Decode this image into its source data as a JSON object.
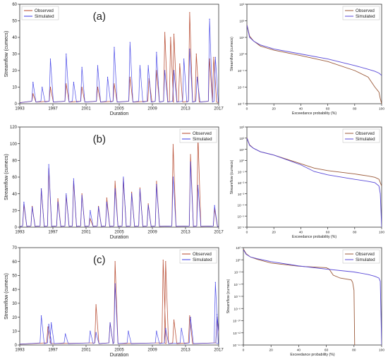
{
  "colors": {
    "observed": "#b5452a",
    "simulated": "#3a3ae6",
    "observed_fdc": "#9b5a3a",
    "simulated_fdc": "#5a4ad8"
  },
  "chart_data": [
    {
      "id": "a-hydro",
      "type": "line",
      "panel_label": "(a)",
      "xlabel": "Duration",
      "ylabel": "Streamflow (cumecs)",
      "xlim": [
        1993,
        2017
      ],
      "ylim": [
        0,
        60
      ],
      "x_ticks": [
        "1993",
        "1997",
        "2001",
        "2005",
        "2009",
        "2013",
        "2017"
      ],
      "y_ticks": [
        "0",
        "10",
        "20",
        "30",
        "40",
        "50",
        "60"
      ],
      "legend": [
        "Observed",
        "Simulated"
      ],
      "legend_position": "top-left",
      "series": [
        {
          "name": "Observed",
          "x": [
            1994.6,
            1996.7,
            1998.6,
            2000.5,
            2002.4,
            2004.4,
            2006.3,
            2008.6,
            2009.5,
            2010.5,
            2011.2,
            2011.6,
            2012.3,
            2013.5,
            2014.3,
            2015.9,
            2016.4
          ],
          "y": [
            6,
            10,
            12,
            10,
            10,
            12,
            16,
            15,
            20,
            43,
            40,
            42,
            24,
            55,
            30,
            27,
            28
          ]
        },
        {
          "name": "Simulated",
          "x": [
            1994.6,
            1995.7,
            1996.7,
            1998.6,
            1999.5,
            2000.5,
            2002.4,
            2003.6,
            2004.4,
            2006.3,
            2007.5,
            2008.5,
            2009.5,
            2010.5,
            2011.6,
            2012.8,
            2013.5,
            2014.4,
            2015.9,
            2016.6
          ],
          "y": [
            13,
            10,
            27,
            30,
            13,
            22,
            23,
            16,
            34,
            37,
            23,
            23,
            31,
            20,
            20,
            27,
            33,
            16,
            51,
            28
          ]
        }
      ]
    },
    {
      "id": "a-fdc",
      "type": "line",
      "xlabel": "Exceedance probability (%)",
      "ylabel": "Streamflow (cumecs)",
      "xlim": [
        0,
        100
      ],
      "yscale": "log",
      "x_ticks": [
        "0",
        "20",
        "40",
        "60",
        "80",
        "100"
      ],
      "y_ticks": [
        "10³",
        "10²",
        "10¹",
        "10⁰",
        "10⁻¹",
        "10⁻²",
        "10⁻³"
      ],
      "legend": [
        "Observed",
        "Simulated"
      ],
      "legend_position": "top-right",
      "series": [
        {
          "name": "Observed",
          "x": [
            0,
            2,
            5,
            10,
            20,
            40,
            60,
            80,
            90,
            95,
            98,
            99,
            100
          ],
          "y": [
            60,
            12,
            6,
            3,
            1.7,
            0.8,
            0.35,
            0.1,
            0.04,
            0.01,
            0.005,
            0.002,
            0.001
          ]
        },
        {
          "name": "Simulated",
          "x": [
            0,
            2,
            5,
            10,
            20,
            40,
            60,
            80,
            90,
            95,
            98,
            99,
            100
          ],
          "y": [
            55,
            10,
            6,
            3.5,
            2,
            1,
            0.5,
            0.2,
            0.12,
            0.09,
            0.07,
            0.06,
            0.05
          ]
        }
      ]
    },
    {
      "id": "b-hydro",
      "type": "line",
      "panel_label": "(b)",
      "xlabel": "Duration",
      "ylabel": "Streamflow (cumecs)",
      "xlim": [
        1993,
        2017
      ],
      "ylim": [
        0,
        120
      ],
      "x_ticks": [
        "1993",
        "1997",
        "2001",
        "2005",
        "2009",
        "2013",
        "2017"
      ],
      "y_ticks": [
        "0",
        "20",
        "40",
        "60",
        "80",
        "100",
        "120"
      ],
      "legend": [
        "Observed",
        "Simulated"
      ],
      "legend_position": "top-right",
      "series": [
        {
          "name": "Observed",
          "x": [
            1993.5,
            1994.5,
            1995.6,
            1996.5,
            1997.6,
            1998.6,
            1999.5,
            2000.5,
            2001.5,
            2002.5,
            2003.5,
            2004.5,
            2005.5,
            2006.5,
            2007.5,
            2008.5,
            2009.5,
            2011.5,
            2013.6,
            2014.5,
            2016.5
          ],
          "y": [
            27,
            25,
            46,
            70,
            34,
            38,
            55,
            40,
            10,
            25,
            35,
            55,
            58,
            42,
            47,
            28,
            55,
            99,
            87,
            110,
            22
          ]
        },
        {
          "name": "Simulated",
          "x": [
            1993.5,
            1994.5,
            1995.6,
            1996.5,
            1997.6,
            1998.6,
            1999.5,
            2000.5,
            2001.5,
            2002.5,
            2003.5,
            2004.5,
            2005.5,
            2006.5,
            2007.5,
            2008.5,
            2009.5,
            2011.5,
            2013.6,
            2014.5,
            2016.5
          ],
          "y": [
            30,
            24,
            46,
            75,
            30,
            40,
            58,
            38,
            20,
            24,
            30,
            46,
            60,
            40,
            45,
            26,
            51,
            60,
            78,
            50,
            26
          ]
        }
      ]
    },
    {
      "id": "b-fdc",
      "type": "line",
      "xlabel": "Exceedance probability (%)",
      "ylabel": "Streamflow (cumecs)",
      "xlim": [
        0,
        100
      ],
      "yscale": "log",
      "x_ticks": [
        "0",
        "20",
        "40",
        "60",
        "80",
        "100"
      ],
      "y_ticks": [
        "10³",
        "10²",
        "10¹",
        "10⁰",
        "10⁻¹",
        "10⁻²",
        "10⁻³",
        "10⁻⁴",
        "10⁻⁵",
        "10⁻⁶"
      ],
      "legend": [
        "Observed",
        "Simulated"
      ],
      "legend_position": "top-right",
      "series": [
        {
          "name": "Observed",
          "x": [
            0,
            2,
            5,
            10,
            20,
            40,
            50,
            60,
            80,
            90,
            95,
            98,
            100
          ],
          "y": [
            110,
            25,
            12,
            6,
            3,
            0.5,
            0.2,
            0.12,
            0.06,
            0.04,
            0.03,
            0.02,
            0.005
          ]
        },
        {
          "name": "Simulated",
          "x": [
            0,
            2,
            5,
            10,
            20,
            40,
            50,
            60,
            80,
            90,
            95,
            98,
            99,
            100
          ],
          "y": [
            100,
            22,
            12,
            6,
            3,
            0.4,
            0.1,
            0.05,
            0.02,
            0.013,
            0.01,
            0.005,
            0.001,
            1e-06
          ]
        }
      ]
    },
    {
      "id": "c-hydro",
      "type": "line",
      "panel_label": "(c)",
      "xlabel": "Duration",
      "ylabel": "Streamflow (cumecs)",
      "xlim": [
        1993,
        2017
      ],
      "ylim": [
        0,
        70
      ],
      "x_ticks": [
        "1993",
        "1997",
        "2001",
        "2005",
        "2009",
        "2013",
        "2017"
      ],
      "y_ticks": [
        "0",
        "10",
        "20",
        "30",
        "40",
        "50",
        "60",
        "70"
      ],
      "legend": [
        "Observed",
        "Simulated"
      ],
      "legend_position": "top-right",
      "series": [
        {
          "name": "Observed",
          "x": [
            1996.4,
            2002.2,
            2003.9,
            2004.5,
            2010.3,
            2010.6,
            2011.6,
            2013.5,
            2016.8
          ],
          "y": [
            13,
            29,
            16,
            60,
            61,
            60,
            18,
            21,
            20
          ]
        },
        {
          "name": "Simulated",
          "x": [
            1995.6,
            1996.5,
            1996.8,
            1998.5,
            2001.5,
            2002.2,
            2003.9,
            2004.5,
            2006.1,
            2009.5,
            2010.6,
            2012.5,
            2013.6,
            2016.6,
            2016.8
          ],
          "y": [
            21,
            15,
            16,
            8,
            10,
            9,
            16,
            44,
            10,
            10,
            12,
            12,
            20,
            45,
            22
          ]
        }
      ]
    },
    {
      "id": "c-fdc",
      "type": "line",
      "xlabel": "Exceedance probability (%)",
      "ylabel": "Streamflow (cumecs)",
      "xlim": [
        0,
        100
      ],
      "yscale": "log",
      "x_ticks": [
        "0",
        "20",
        "40",
        "60",
        "80",
        "100"
      ],
      "y_ticks": [
        "10²",
        "10⁰",
        "10⁻²",
        "10⁻⁴",
        "10⁻⁶",
        "10⁻⁸",
        "10⁻¹⁰",
        "10⁻¹²",
        "10⁻¹⁴"
      ],
      "legend": [
        "Observed",
        "Simulated"
      ],
      "legend_position": "top-right",
      "series": [
        {
          "name": "Observed",
          "x": [
            0,
            2,
            5,
            10,
            20,
            40,
            60,
            62,
            65,
            70,
            78,
            79,
            80,
            80.5
          ],
          "y": [
            60,
            10,
            3,
            1.2,
            0.3,
            0.09,
            0.05,
            0.03,
            0.003,
            0.001,
            0.0005,
            0.0002,
            1e-05,
            1e-14
          ]
        },
        {
          "name": "Simulated",
          "x": [
            0,
            2,
            5,
            10,
            20,
            40,
            60,
            80,
            90,
            95,
            98,
            99,
            100
          ],
          "y": [
            45,
            8,
            3,
            1.5,
            0.5,
            0.1,
            0.03,
            0.01,
            0.004,
            0.002,
            0.001,
            0.0003,
            1e-14
          ]
        }
      ]
    }
  ]
}
